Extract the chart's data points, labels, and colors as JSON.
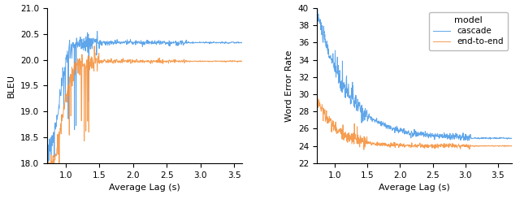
{
  "left": {
    "xlabel": "Average Lag (s)",
    "ylabel": "BLEU",
    "xlim": [
      0.72,
      3.62
    ],
    "ylim": [
      18.0,
      21.0
    ],
    "yticks": [
      18.0,
      18.5,
      19.0,
      19.5,
      20.0,
      20.5,
      21.0
    ],
    "xticks": [
      1.0,
      1.5,
      2.0,
      2.5,
      3.0,
      3.5
    ]
  },
  "right": {
    "xlabel": "Average Lag (s)",
    "ylabel": "Word Error Rate",
    "xlim": [
      0.72,
      3.72
    ],
    "ylim": [
      22,
      40
    ],
    "yticks": [
      22,
      24,
      26,
      28,
      30,
      32,
      34,
      36,
      38,
      40
    ],
    "xticks": [
      1.0,
      1.5,
      2.0,
      2.5,
      3.0,
      3.5
    ]
  },
  "colors": {
    "cascade": "#4C9BE8",
    "end_to_end": "#F5923E"
  },
  "legend_title": "model",
  "legend_labels": [
    "cascade",
    "end-to-end"
  ],
  "figsize": [
    6.4,
    2.45
  ],
  "dpi": 100
}
